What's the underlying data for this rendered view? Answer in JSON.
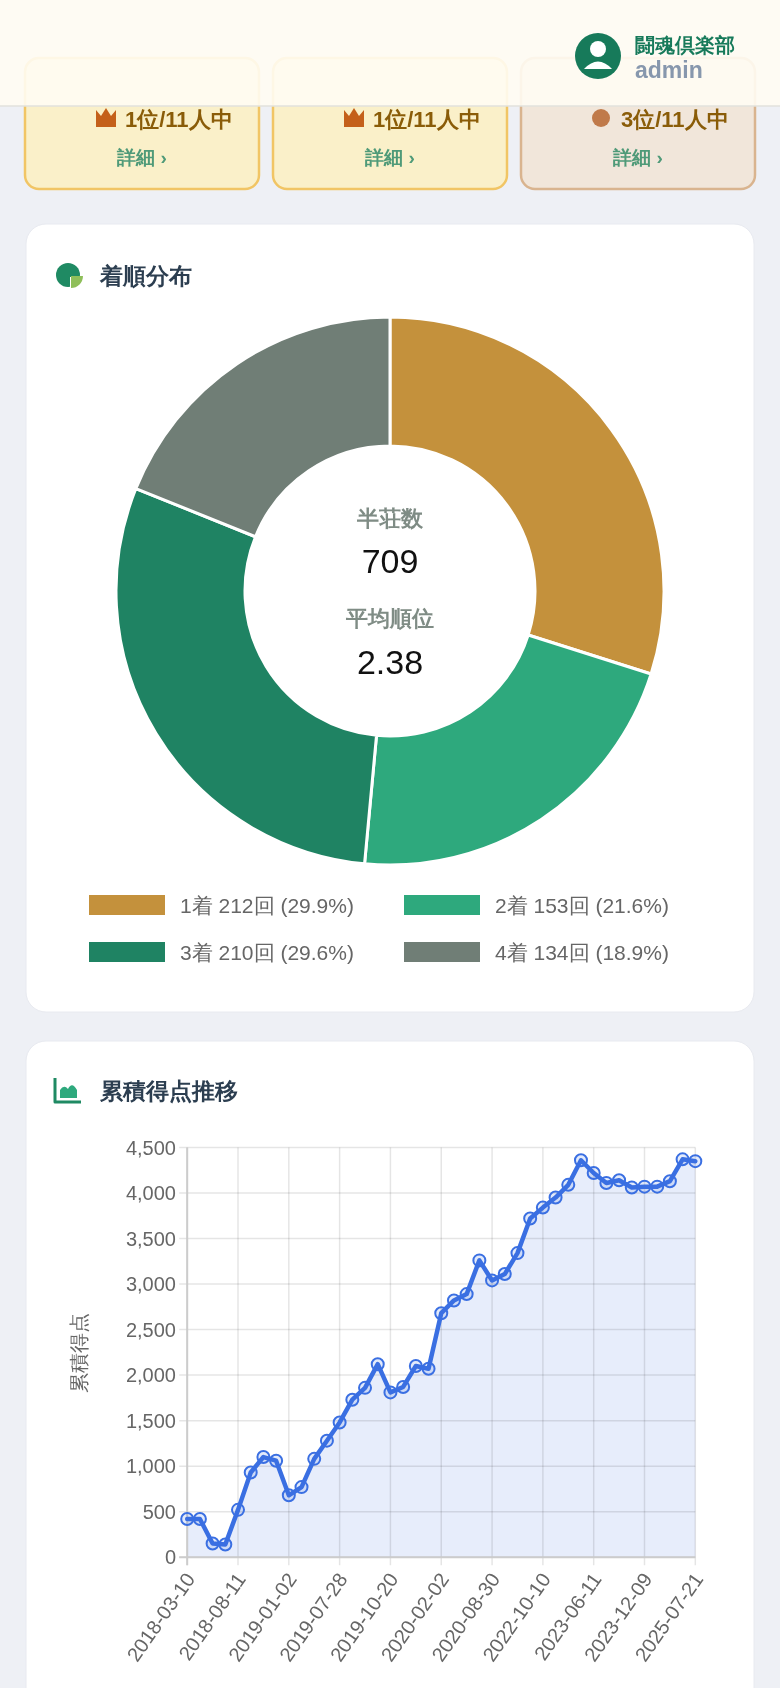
{
  "chart_data": [
    {
      "type": "other",
      "annotations": [
        "闘魂倶楽部",
        "admin",
        "1位/11人中",
        "詳細 ›",
        "1位/11人中",
        "詳細 ›",
        "3位/11人中",
        "詳細 ›"
      ]
    },
    {
      "type": "donut",
      "title": "着順分布",
      "categories": [
        "1着 212回 (29.9%)",
        "2着 153回 (21.6%)",
        "3着 210回 (29.6%)",
        "4着 134回 (18.9%)"
      ],
      "values": [
        212,
        153,
        210,
        134
      ],
      "colors": [
        "#c4913c",
        "#2ea97d",
        "#1f8363",
        "#707e76"
      ],
      "legend": "bottom",
      "annotations": [
        "半荘数",
        "709",
        "平均順位",
        "2.38"
      ]
    },
    {
      "type": "area",
      "title": "累積得点推移",
      "ylabel": "累積得点",
      "categories": [
        "2018-03-10",
        null,
        null,
        null,
        "2018-08-11",
        null,
        null,
        null,
        "2019-01-02",
        null,
        null,
        null,
        "2019-07-28",
        null,
        null,
        null,
        "2019-10-20",
        null,
        null,
        null,
        "2020-02-02",
        null,
        null,
        null,
        "2020-08-30",
        null,
        null,
        null,
        "2022-10-10",
        null,
        null,
        null,
        "2023-06-11",
        null,
        null,
        null,
        "2023-12-09",
        null,
        null,
        null,
        "2025-07-21"
      ],
      "series": [
        {
          "color": "#3a6fe2",
          "values": [
            420,
            420,
            150,
            140,
            520,
            930,
            1100,
            1060,
            680,
            770,
            1080,
            1280,
            1480,
            1730,
            1860,
            2120,
            1810,
            1870,
            2100,
            2070,
            2680,
            2820,
            2890,
            3260,
            3040,
            3110,
            3340,
            3720,
            3840,
            3950,
            4090,
            4360,
            4220,
            4110,
            4140,
            4060,
            4070,
            4070,
            4130,
            4370,
            4350
          ]
        }
      ],
      "ylim": [
        0,
        4500
      ],
      "yticks": [
        0,
        500,
        {
          "value": 1000,
          "label": "1,000"
        },
        {
          "value": 1500,
          "label": "1,500"
        },
        {
          "value": 2000,
          "label": "2,000"
        },
        {
          "value": 2500,
          "label": "2,500"
        },
        {
          "value": 3000,
          "label": "3,000"
        },
        {
          "value": 3500,
          "label": "3,500"
        },
        {
          "value": 4000,
          "label": "4,000"
        },
        {
          "value": 4500,
          "label": "4,500"
        }
      ],
      "grid": true,
      "marker": "circle",
      "line_style": "solid"
    }
  ]
}
